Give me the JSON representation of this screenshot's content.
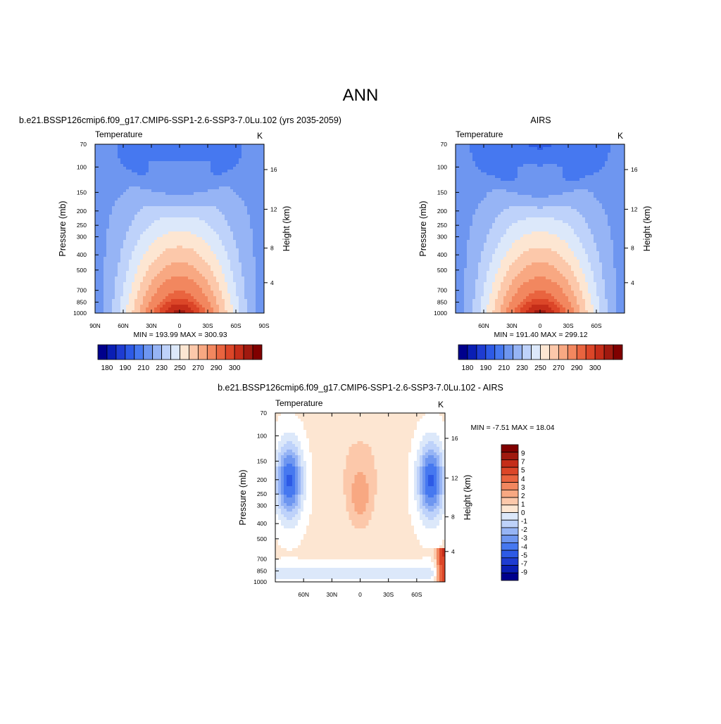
{
  "main_title": "ANN",
  "palette": {
    "full": [
      "#00008c",
      "#0a1eb4",
      "#1e3cd2",
      "#2d5ae6",
      "#4678f0",
      "#6e96f0",
      "#96b4f5",
      "#bed2fa",
      "#dce8fa",
      "#fde6d2",
      "#fcc8aa",
      "#f8a882",
      "#f2875f",
      "#e9643f",
      "#dc4628",
      "#c52d19",
      "#a0190f",
      "#800000"
    ],
    "field_bands": [
      "#2d5ae6",
      "#4678f0",
      "#6e96f0",
      "#96b4f5",
      "#bed2fa",
      "#dce8fa",
      "#fde6d2",
      "#fcc8aa",
      "#f8a882",
      "#f2875f",
      "#e9643f",
      "#dc4628",
      "#c52d19",
      "#a0190f"
    ],
    "diff": [
      "#00008c",
      "#0a1eb4",
      "#1e3cd2",
      "#2d5ae6",
      "#4678f0",
      "#6e96f0",
      "#96b4f5",
      "#bed2fa",
      "#dce8fa",
      "#ffffff",
      "#fde6d2",
      "#fcc8aa",
      "#f8a882",
      "#f2875f",
      "#e9643f",
      "#dc4628",
      "#c52d19",
      "#a0190f",
      "#800000"
    ]
  },
  "chart_data": [
    {
      "type": "heatmap",
      "title": "b.e21.BSSP126cmip6.f09_g17.CMIP6-SSP1-2.6-SSP3-7.0Lu.102 (yrs 2035-2059)",
      "left_label": "Temperature",
      "units": "K",
      "ylabel": "Pressure (mb)",
      "y2label": "Height (km)",
      "x_ticks": [
        "90N",
        "60N",
        "30N",
        "0",
        "30S",
        "60S",
        "90S"
      ],
      "y_ticks": [
        "70",
        "100",
        "150",
        "200",
        "250",
        "300",
        "400",
        "500",
        "700",
        "850",
        "1000"
      ],
      "y2_ticks": [
        "16",
        "12",
        "8",
        "4"
      ],
      "stats": "MIN = 193.99  MAX = 300.93",
      "ylim": [
        1000,
        70
      ],
      "xlim": [
        "90N",
        "90S"
      ],
      "colorbar_labels": [
        "180",
        "190",
        "210",
        "230",
        "250",
        "270",
        "290",
        "300"
      ],
      "min": 193.99,
      "max": 300.93
    },
    {
      "type": "heatmap",
      "title": "AIRS",
      "left_label": "Temperature",
      "units": "K",
      "ylabel": "Pressure (mb)",
      "y2label": "Height (km)",
      "x_ticks": [
        "60N",
        "30N",
        "0",
        "30S",
        "60S"
      ],
      "y_ticks": [
        "70",
        "100",
        "150",
        "200",
        "250",
        "300",
        "400",
        "500",
        "700",
        "850",
        "1000"
      ],
      "y2_ticks": [
        "16",
        "12",
        "8",
        "4"
      ],
      "stats": "MIN = 191.40  MAX = 299.12",
      "ylim": [
        1000,
        70
      ],
      "colorbar_labels": [
        "180",
        "190",
        "210",
        "230",
        "250",
        "270",
        "290",
        "300"
      ],
      "min": 191.4,
      "max": 299.12
    },
    {
      "type": "heatmap",
      "title": "b.e21.BSSP126cmip6.f09_g17.CMIP6-SSP1-2.6-SSP3-7.0Lu.102 - AIRS",
      "left_label": "Temperature",
      "units": "K",
      "ylabel": "Pressure (mb)",
      "y2label": "Height (km)",
      "x_ticks": [
        "60N",
        "30N",
        "0",
        "30S",
        "60S"
      ],
      "y_ticks": [
        "70",
        "100",
        "150",
        "200",
        "250",
        "300",
        "400",
        "500",
        "700",
        "850",
        "1000"
      ],
      "y2_ticks": [
        "16",
        "12",
        "8",
        "4"
      ],
      "stats": "MIN =  -7.51  MAX =  18.04",
      "ylim": [
        1000,
        70
      ],
      "colorbar_labels": [
        "9",
        "7",
        "5",
        "4",
        "3",
        "2",
        "1",
        "0",
        "-1",
        "-2",
        "-3",
        "-4",
        "-5",
        "-7",
        "-9"
      ],
      "min": -7.51,
      "max": 18.04
    }
  ]
}
